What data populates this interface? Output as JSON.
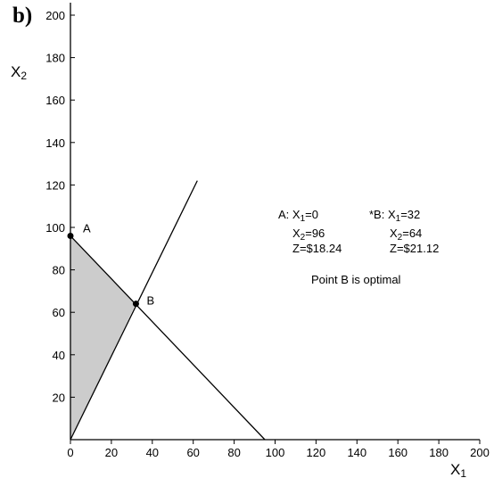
{
  "panel_label": "b)",
  "chart_data": {
    "type": "line",
    "x_axis": {
      "title": "X",
      "title_sub": "1",
      "range": [
        0,
        200
      ],
      "ticks": [
        0,
        20,
        40,
        60,
        80,
        100,
        120,
        140,
        160,
        180,
        200
      ]
    },
    "y_axis": {
      "title": "X",
      "title_sub": "2",
      "range": [
        0,
        200
      ],
      "ticks": [
        20,
        40,
        60,
        80,
        100,
        120,
        140,
        160,
        180,
        200
      ]
    },
    "grid": false,
    "constraint_lines": [
      {
        "x": [
          0,
          95
        ],
        "y": [
          96,
          0
        ]
      },
      {
        "x": [
          0,
          62
        ],
        "y": [
          0,
          122
        ]
      }
    ],
    "feasible_region": {
      "x": [
        0,
        0,
        32
      ],
      "y": [
        0,
        96,
        64
      ],
      "fill": "#cccccc"
    },
    "points": [
      {
        "name": "A",
        "x": 0,
        "y": 96
      },
      {
        "name": "B",
        "x": 32,
        "y": 64
      }
    ],
    "annotations": {
      "point_a": [
        {
          "prefix": "A: X",
          "sub": "1",
          "rest": "=0"
        },
        {
          "prefix": "X",
          "sub": "2",
          "rest": "=96"
        },
        {
          "prefix": "Z=$18.24",
          "sub": "",
          "rest": ""
        }
      ],
      "point_b": [
        {
          "prefix": "*B: X",
          "sub": "1",
          "rest": "=32"
        },
        {
          "prefix": "X",
          "sub": "2",
          "rest": "=64"
        },
        {
          "prefix": "Z=$21.12",
          "sub": "",
          "rest": ""
        }
      ],
      "note": "Point B is optimal"
    }
  }
}
